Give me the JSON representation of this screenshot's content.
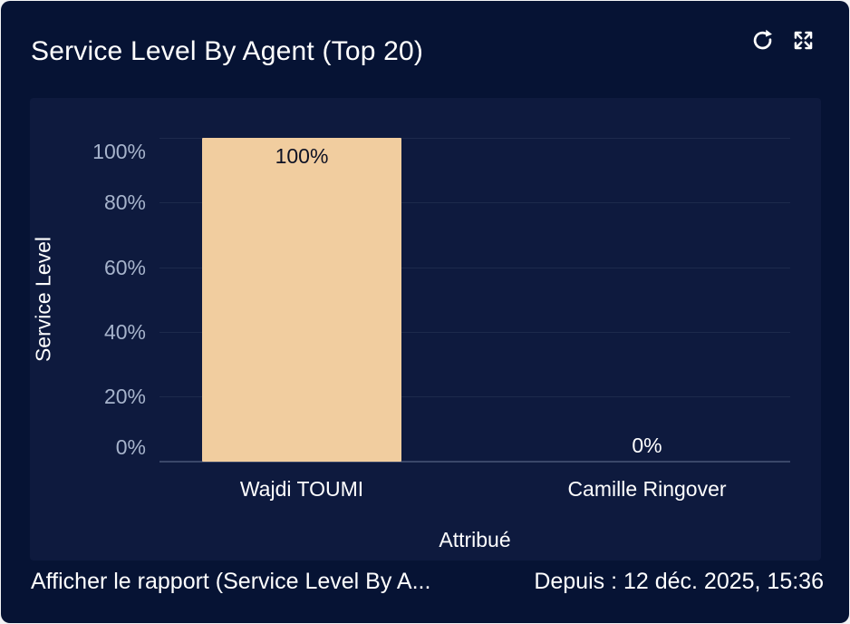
{
  "card": {
    "title": "Service Level By Agent (Top 20)",
    "icons": [
      {
        "name": "refresh-icon"
      },
      {
        "name": "expand-icon"
      }
    ],
    "footer": {
      "report_link": "Afficher le rapport (Service Level By A...",
      "since_label": "Depuis : 12 déc. 2025, 15:36"
    }
  },
  "chart_data": {
    "type": "bar",
    "title": "Service Level By Agent (Top 20)",
    "categories": [
      "Wajdi TOUMI",
      "Camille Ringover"
    ],
    "values": [
      100,
      0
    ],
    "value_labels": [
      "100%",
      "0%"
    ],
    "xlabel": "Attribué",
    "ylabel": "Service Level",
    "ylim": [
      0,
      100
    ],
    "ytick_labels": [
      "0%",
      "20%",
      "40%",
      "60%",
      "80%",
      "100%"
    ],
    "grid": true,
    "legend": false,
    "bar_color": "#f1cd9f"
  },
  "colors": {
    "card_bg": "#061334",
    "panel_bg": "#0e1a3e",
    "gridline": "#1d2a4c",
    "axis_line": "#3a4769",
    "tick_label": "#a6b3cb",
    "bar": "#f1cd9f",
    "value_label_on_bar": "#0e1224",
    "value_label_off_bar": "#ffffff",
    "text": "#ffffff"
  }
}
